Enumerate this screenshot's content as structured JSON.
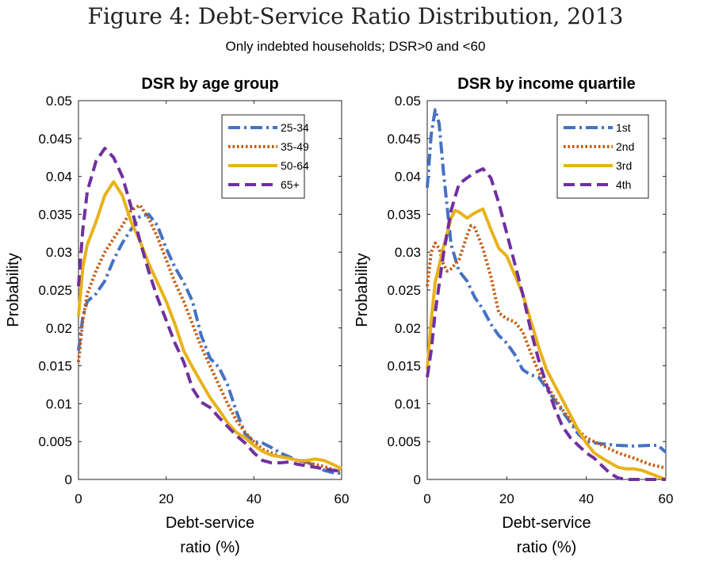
{
  "figure": {
    "title": "Figure 4: Debt-Service Ratio Distribution, 2013",
    "subtitle": "Only indebted households; DSR>0 and <60"
  },
  "chart_data": [
    {
      "type": "line",
      "title": "DSR by age group",
      "xlabel_lines": [
        "Debt-service",
        "ratio (%)"
      ],
      "ylabel": "Probability",
      "xlim": [
        0,
        60
      ],
      "ylim": [
        0,
        0.05
      ],
      "xticks": [
        0,
        20,
        40,
        60
      ],
      "xtick_labels": [
        "0",
        "20",
        "40",
        "60"
      ],
      "yticks": [
        0,
        0.005,
        0.01,
        0.015,
        0.02,
        0.025,
        0.03,
        0.035,
        0.04,
        0.045,
        0.05
      ],
      "ytick_labels": [
        "0",
        "0.005",
        "0.01",
        "0.015",
        "0.02",
        "0.025",
        "0.03",
        "0.035",
        "0.04",
        "0.045",
        "0.05"
      ],
      "grid": false,
      "legend_position": "top-right",
      "series": [
        {
          "name": "25-34",
          "color": "#4472C4",
          "style": "dashdot",
          "points": [
            [
              0,
              0.017
            ],
            [
              1,
              0.0215
            ],
            [
              2,
              0.0235
            ],
            [
              4,
              0.0245
            ],
            [
              6,
              0.0262
            ],
            [
              8,
              0.029
            ],
            [
              10,
              0.0312
            ],
            [
              12,
              0.033
            ],
            [
              14,
              0.0347
            ],
            [
              16,
              0.035
            ],
            [
              18,
              0.0335
            ],
            [
              20,
              0.0305
            ],
            [
              22,
              0.028
            ],
            [
              24,
              0.026
            ],
            [
              26,
              0.0235
            ],
            [
              28,
              0.019
            ],
            [
              30,
              0.016
            ],
            [
              32,
              0.0148
            ],
            [
              34,
              0.0125
            ],
            [
              36,
              0.009
            ],
            [
              38,
              0.006
            ],
            [
              40,
              0.005
            ],
            [
              42,
              0.0048
            ],
            [
              44,
              0.0042
            ],
            [
              46,
              0.0035
            ],
            [
              48,
              0.003
            ],
            [
              50,
              0.0025
            ],
            [
              52,
              0.0023
            ],
            [
              54,
              0.0018
            ],
            [
              56,
              0.0012
            ],
            [
              58,
              0.0009
            ],
            [
              60,
              0.0008
            ]
          ]
        },
        {
          "name": "35-49",
          "color": "#C55A11",
          "style": "dotted",
          "points": [
            [
              0,
              0.0155
            ],
            [
              1,
              0.021
            ],
            [
              2,
              0.0245
            ],
            [
              4,
              0.0275
            ],
            [
              6,
              0.03
            ],
            [
              8,
              0.0318
            ],
            [
              10,
              0.0335
            ],
            [
              12,
              0.0355
            ],
            [
              14,
              0.0362
            ],
            [
              16,
              0.0345
            ],
            [
              18,
              0.032
            ],
            [
              20,
              0.029
            ],
            [
              22,
              0.026
            ],
            [
              24,
              0.0235
            ],
            [
              26,
              0.0205
            ],
            [
              28,
              0.0175
            ],
            [
              30,
              0.015
            ],
            [
              32,
              0.0125
            ],
            [
              34,
              0.01
            ],
            [
              36,
              0.0078
            ],
            [
              38,
              0.0062
            ],
            [
              40,
              0.005
            ],
            [
              42,
              0.004
            ],
            [
              44,
              0.0035
            ],
            [
              46,
              0.003
            ],
            [
              48,
              0.0028
            ],
            [
              50,
              0.0025
            ],
            [
              52,
              0.0022
            ],
            [
              54,
              0.002
            ],
            [
              56,
              0.0017
            ],
            [
              58,
              0.0013
            ],
            [
              60,
              0.001
            ]
          ]
        },
        {
          "name": "50-64",
          "color": "#E8B219",
          "style": "solid",
          "points": [
            [
              0,
              0.0215
            ],
            [
              1,
              0.028
            ],
            [
              2,
              0.031
            ],
            [
              4,
              0.034
            ],
            [
              6,
              0.0375
            ],
            [
              8,
              0.0393
            ],
            [
              10,
              0.0375
            ],
            [
              12,
              0.034
            ],
            [
              14,
              0.0315
            ],
            [
              16,
              0.0285
            ],
            [
              18,
              0.026
            ],
            [
              20,
              0.0235
            ],
            [
              22,
              0.0205
            ],
            [
              24,
              0.017
            ],
            [
              26,
              0.0148
            ],
            [
              28,
              0.0128
            ],
            [
              30,
              0.0108
            ],
            [
              32,
              0.0092
            ],
            [
              34,
              0.0075
            ],
            [
              36,
              0.0062
            ],
            [
              38,
              0.0055
            ],
            [
              40,
              0.0045
            ],
            [
              42,
              0.0037
            ],
            [
              44,
              0.0032
            ],
            [
              46,
              0.003
            ],
            [
              48,
              0.0028
            ],
            [
              50,
              0.0025
            ],
            [
              52,
              0.0025
            ],
            [
              54,
              0.0027
            ],
            [
              56,
              0.0025
            ],
            [
              58,
              0.002
            ],
            [
              60,
              0.0014
            ]
          ]
        },
        {
          "name": "65+",
          "color": "#7030A0",
          "style": "dashed",
          "points": [
            [
              0,
              0.0255
            ],
            [
              1,
              0.033
            ],
            [
              2,
              0.038
            ],
            [
              4,
              0.042
            ],
            [
              6,
              0.0437
            ],
            [
              8,
              0.0425
            ],
            [
              10,
              0.04
            ],
            [
              12,
              0.036
            ],
            [
              14,
              0.0315
            ],
            [
              16,
              0.0275
            ],
            [
              18,
              0.024
            ],
            [
              20,
              0.021
            ],
            [
              22,
              0.018
            ],
            [
              24,
              0.0155
            ],
            [
              26,
              0.012
            ],
            [
              28,
              0.0102
            ],
            [
              30,
              0.0095
            ],
            [
              32,
              0.0082
            ],
            [
              34,
              0.007
            ],
            [
              36,
              0.0058
            ],
            [
              38,
              0.0048
            ],
            [
              40,
              0.0035
            ],
            [
              42,
              0.0025
            ],
            [
              44,
              0.0022
            ],
            [
              46,
              0.0022
            ],
            [
              48,
              0.0023
            ],
            [
              50,
              0.002
            ],
            [
              52,
              0.0018
            ],
            [
              54,
              0.0016
            ],
            [
              56,
              0.0014
            ],
            [
              58,
              0.0012
            ],
            [
              60,
              0.0011
            ]
          ]
        }
      ]
    },
    {
      "type": "line",
      "title": "DSR by income quartile",
      "xlabel_lines": [
        "Debt-service",
        "ratio (%)"
      ],
      "ylabel": "Probability",
      "xlim": [
        0,
        60
      ],
      "ylim": [
        0,
        0.05
      ],
      "xticks": [
        0,
        20,
        40,
        60
      ],
      "xtick_labels": [
        "0",
        "20",
        "40",
        "60"
      ],
      "yticks": [
        0,
        0.005,
        0.01,
        0.015,
        0.02,
        0.025,
        0.03,
        0.035,
        0.04,
        0.045,
        0.05
      ],
      "ytick_labels": [
        "0",
        "0.005",
        "0.01",
        "0.015",
        "0.02",
        "0.025",
        "0.03",
        "0.035",
        "0.04",
        "0.045",
        "0.05"
      ],
      "grid": false,
      "legend_position": "top-right",
      "series": [
        {
          "name": "1st",
          "color": "#4472C4",
          "style": "dashdot",
          "points": [
            [
              0,
              0.0385
            ],
            [
              1,
              0.0455
            ],
            [
              2,
              0.0488
            ],
            [
              3,
              0.047
            ],
            [
              4,
              0.041
            ],
            [
              5,
              0.036
            ],
            [
              6,
              0.031
            ],
            [
              8,
              0.0275
            ],
            [
              10,
              0.0262
            ],
            [
              12,
              0.024
            ],
            [
              14,
              0.0225
            ],
            [
              16,
              0.0205
            ],
            [
              18,
              0.019
            ],
            [
              20,
              0.018
            ],
            [
              22,
              0.0165
            ],
            [
              24,
              0.0145
            ],
            [
              26,
              0.0138
            ],
            [
              28,
              0.0135
            ],
            [
              30,
              0.012
            ],
            [
              32,
              0.0105
            ],
            [
              34,
              0.009
            ],
            [
              36,
              0.0075
            ],
            [
              38,
              0.006
            ],
            [
              40,
              0.005
            ],
            [
              44,
              0.0047
            ],
            [
              48,
              0.0045
            ],
            [
              52,
              0.0044
            ],
            [
              56,
              0.0045
            ],
            [
              58,
              0.0045
            ],
            [
              60,
              0.0036
            ]
          ]
        },
        {
          "name": "2nd",
          "color": "#C55A11",
          "style": "dotted",
          "points": [
            [
              0,
              0.0255
            ],
            [
              1,
              0.03
            ],
            [
              2,
              0.0312
            ],
            [
              3,
              0.0305
            ],
            [
              4,
              0.0285
            ],
            [
              5,
              0.0275
            ],
            [
              6,
              0.0278
            ],
            [
              8,
              0.029
            ],
            [
              10,
              0.0322
            ],
            [
              11,
              0.0335
            ],
            [
              12,
              0.0332
            ],
            [
              14,
              0.0305
            ],
            [
              16,
              0.0268
            ],
            [
              18,
              0.022
            ],
            [
              20,
              0.0212
            ],
            [
              22,
              0.0208
            ],
            [
              24,
              0.0195
            ],
            [
              26,
              0.0168
            ],
            [
              28,
              0.0142
            ],
            [
              30,
              0.0125
            ],
            [
              32,
              0.0108
            ],
            [
              34,
              0.0092
            ],
            [
              36,
              0.0078
            ],
            [
              38,
              0.0065
            ],
            [
              40,
              0.0055
            ],
            [
              44,
              0.0045
            ],
            [
              48,
              0.0035
            ],
            [
              52,
              0.0028
            ],
            [
              56,
              0.002
            ],
            [
              60,
              0.0015
            ]
          ]
        },
        {
          "name": "3rd",
          "color": "#E8B219",
          "style": "solid",
          "points": [
            [
              0,
              0.0145
            ],
            [
              1,
              0.021
            ],
            [
              2,
              0.026
            ],
            [
              4,
              0.0305
            ],
            [
              6,
              0.0345
            ],
            [
              7,
              0.0355
            ],
            [
              8,
              0.0353
            ],
            [
              10,
              0.0345
            ],
            [
              12,
              0.0352
            ],
            [
              14,
              0.0357
            ],
            [
              16,
              0.033
            ],
            [
              18,
              0.0305
            ],
            [
              20,
              0.0295
            ],
            [
              22,
              0.027
            ],
            [
              24,
              0.0245
            ],
            [
              26,
              0.021
            ],
            [
              28,
              0.0175
            ],
            [
              30,
              0.0145
            ],
            [
              32,
              0.0125
            ],
            [
              34,
              0.0105
            ],
            [
              36,
              0.0085
            ],
            [
              38,
              0.0065
            ],
            [
              40,
              0.0048
            ],
            [
              42,
              0.0035
            ],
            [
              44,
              0.0028
            ],
            [
              46,
              0.0022
            ],
            [
              48,
              0.0016
            ],
            [
              50,
              0.0014
            ],
            [
              52,
              0.0014
            ],
            [
              54,
              0.0012
            ],
            [
              56,
              0.0008
            ],
            [
              58,
              0.0004
            ],
            [
              60,
              0.0
            ]
          ]
        },
        {
          "name": "4th",
          "color": "#7030A0",
          "style": "dashed",
          "points": [
            [
              0,
              0.0135
            ],
            [
              1,
              0.017
            ],
            [
              2,
              0.022
            ],
            [
              4,
              0.0295
            ],
            [
              6,
              0.0355
            ],
            [
              8,
              0.039
            ],
            [
              10,
              0.0398
            ],
            [
              12,
              0.0405
            ],
            [
              14,
              0.041
            ],
            [
              16,
              0.0398
            ],
            [
              18,
              0.0365
            ],
            [
              20,
              0.0325
            ],
            [
              22,
              0.0285
            ],
            [
              24,
              0.0245
            ],
            [
              26,
              0.0198
            ],
            [
              28,
              0.0158
            ],
            [
              30,
              0.0125
            ],
            [
              32,
              0.0095
            ],
            [
              34,
              0.007
            ],
            [
              36,
              0.0055
            ],
            [
              38,
              0.0045
            ],
            [
              40,
              0.0035
            ],
            [
              42,
              0.0028
            ],
            [
              44,
              0.0018
            ],
            [
              46,
              0.0008
            ],
            [
              48,
              0.0002
            ],
            [
              50,
              0.0
            ],
            [
              55,
              0.0
            ],
            [
              60,
              0.0
            ]
          ]
        }
      ]
    }
  ]
}
